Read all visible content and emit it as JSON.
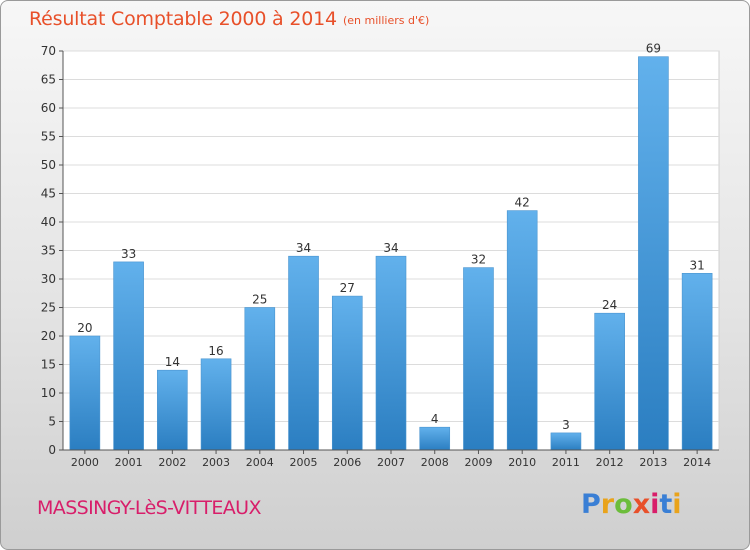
{
  "header": {
    "title": "Résultat Comptable 2000 à 2014",
    "subtitle": "(en milliers d'€)"
  },
  "footer": {
    "location": "MASSINGY-LèS-VITTEAUX",
    "logo_text": "Proxiti"
  },
  "colors": {
    "title": "#e8502a",
    "location": "#d81e6a",
    "bar_light": "#62b1ec",
    "bar_dark": "#2b7ec1",
    "logo_letters": [
      "#3a7fd5",
      "#e9a31b",
      "#6cbd3b",
      "#e8502a",
      "#d81e6a",
      "#3a7fd5",
      "#e9a31b"
    ]
  },
  "chart_data": {
    "type": "bar",
    "categories": [
      "2000",
      "2001",
      "2002",
      "2003",
      "2004",
      "2005",
      "2006",
      "2007",
      "2008",
      "2009",
      "2010",
      "2011",
      "2012",
      "2013",
      "2014"
    ],
    "values": [
      20,
      33,
      14,
      16,
      25,
      34,
      27,
      34,
      4,
      32,
      42,
      3,
      24,
      69,
      31
    ],
    "data_labels": [
      "20",
      "33",
      "14",
      "16",
      "25",
      "34",
      "27",
      "34",
      "4",
      "32",
      "42",
      "3",
      "24",
      "69",
      "31"
    ],
    "title": "Résultat Comptable 2000 à 2014",
    "subtitle": "(en milliers d'€)",
    "xlabel": "",
    "ylabel": "",
    "ylim": [
      0,
      70
    ],
    "yticks": [
      0,
      5,
      10,
      15,
      20,
      25,
      30,
      35,
      40,
      45,
      50,
      55,
      60,
      65,
      70
    ],
    "ytick_labels": [
      "0",
      "5",
      "10",
      "15",
      "20",
      "25",
      "30",
      "35",
      "40",
      "45",
      "50",
      "55",
      "60",
      "65",
      "70"
    ],
    "grid": true,
    "legend": "none"
  }
}
